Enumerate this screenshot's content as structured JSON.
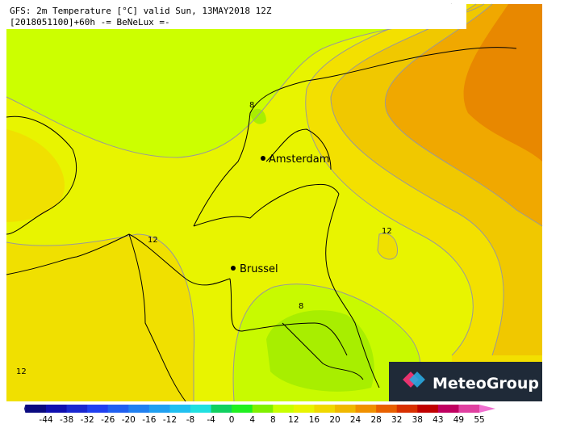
{
  "header": {
    "line1": "GFS: 2m Temperature [°C] valid Sun, 13MAY2018 12Z",
    "line2": "[2018051100]+60h -= BeNeLux =-"
  },
  "cities": [
    {
      "label": "Amsterdam"
    },
    {
      "label": "Brussel"
    }
  ],
  "contour_labels": [
    "8",
    "12",
    "12",
    "8",
    "12"
  ],
  "legend": {
    "ticks": [
      "-44",
      "-38",
      "-32",
      "-26",
      "-20",
      "-16",
      "-12",
      "-8",
      "-4",
      "0",
      "4",
      "8",
      "12",
      "16",
      "20",
      "24",
      "28",
      "32",
      "38",
      "43",
      "49",
      "55"
    ]
  },
  "logo": {
    "text": "MeteoGroup"
  }
}
